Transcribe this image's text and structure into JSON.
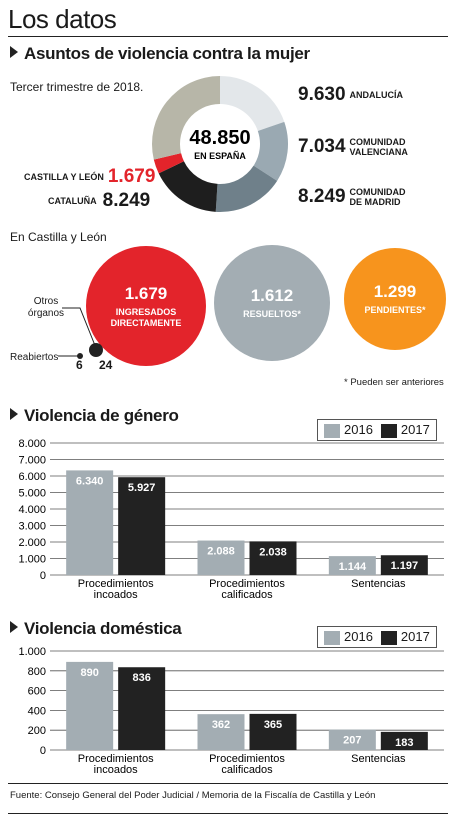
{
  "page_title": "Los datos",
  "section1": {
    "title": "Asuntos de violencia contra la mujer",
    "subtitle": "Tercer trimestre de 2018.",
    "center_value": "48.850",
    "center_label": "EN ESPAÑA",
    "regions": [
      {
        "value": "9.630",
        "label": "ANDALUCÍA",
        "color": "#e3e7ea"
      },
      {
        "value": "7.034",
        "label": "COMUNIDAD VALENCIANA",
        "color": "#9aa9b2"
      },
      {
        "value": "8.249",
        "label": "COMUNIDAD DE MADRID",
        "color": "#6f808a"
      },
      {
        "value": "8.249",
        "label": "CATALUÑA",
        "color": "#1e1e1e"
      },
      {
        "value": "1.679",
        "label": "CASTILLA Y LEÓN",
        "color": "#e3242b"
      }
    ],
    "rest_color": "#b7b6a8",
    "rest_value": 14009,
    "cyl_subtitle": "En Castilla y León",
    "circles": [
      {
        "value": "1.679",
        "label": "INGRESADOS DIRECTAMENTE",
        "color": "#e3242b"
      },
      {
        "value": "1.612",
        "label": "RESUELTOS*",
        "color": "#a3adb3"
      },
      {
        "value": "1.299",
        "label": "PENDIENTES*",
        "color": "#f7941d"
      }
    ],
    "small": {
      "otros_label": "Otros órganos",
      "reabiertos_label": "Reabiertos",
      "reabiertos_value": "6",
      "otros_value": "24"
    },
    "footnote": "* Pueden ser anteriores"
  },
  "chart_data": [
    {
      "type": "bar",
      "title": "Violencia de género",
      "categories": [
        "Procedimientos incoados",
        "Procedimientos calificados",
        "Sentencias"
      ],
      "series": [
        {
          "name": "2016",
          "values": [
            6340,
            2088,
            1144
          ],
          "labels": [
            "6.340",
            "2.088",
            "1.144"
          ],
          "color": "#a3adb3"
        },
        {
          "name": "2017",
          "values": [
            5927,
            2038,
            1197
          ],
          "labels": [
            "5.927",
            "2.038",
            "1.197"
          ],
          "color": "#222222"
        }
      ],
      "ylim": [
        0,
        8000
      ],
      "yticks": [
        0,
        1000,
        2000,
        3000,
        4000,
        5000,
        6000,
        7000,
        8000
      ],
      "ytick_labels": [
        "0",
        "1.000",
        "2.000",
        "3.000",
        "4.000",
        "5.000",
        "6.000",
        "7.000",
        "8.000"
      ],
      "legend": "top-right"
    },
    {
      "type": "bar",
      "title": "Violencia doméstica",
      "categories": [
        "Procedimientos incoados",
        "Procedimientos calificados",
        "Sentencias"
      ],
      "series": [
        {
          "name": "2016",
          "values": [
            890,
            362,
            207
          ],
          "labels": [
            "890",
            "362",
            "207"
          ],
          "color": "#a3adb3"
        },
        {
          "name": "2017",
          "values": [
            836,
            365,
            183
          ],
          "labels": [
            "836",
            "365",
            "183"
          ],
          "color": "#222222"
        }
      ],
      "ylim": [
        0,
        1000
      ],
      "yticks": [
        0,
        200,
        400,
        600,
        800,
        1000
      ],
      "ytick_labels": [
        "0",
        "200",
        "400",
        "600",
        "800",
        "1.000"
      ],
      "legend": "top-right"
    }
  ],
  "source": "Fuente: Consejo General del Poder Judicial / Memoria de la Fiscalía de Castilla y León"
}
